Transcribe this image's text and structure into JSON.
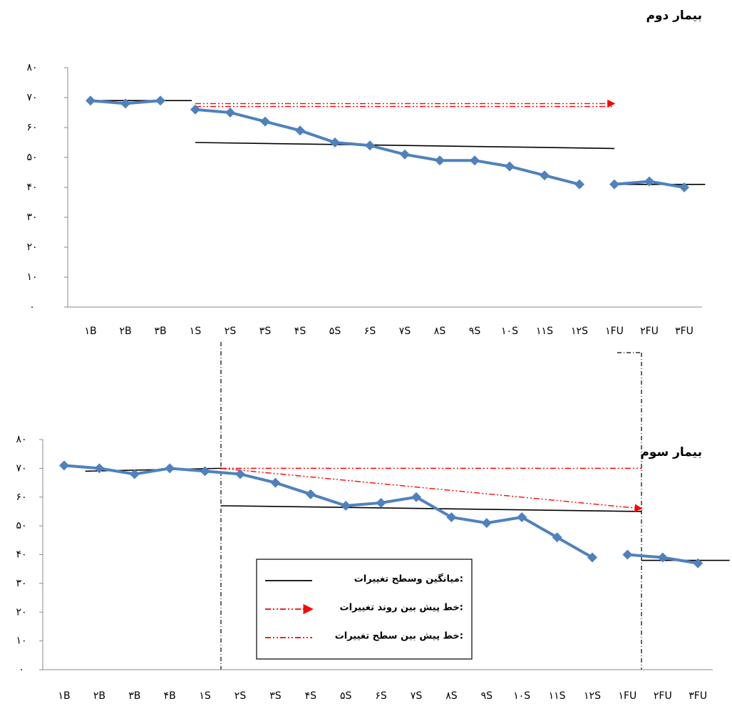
{
  "chart_data": [
    {
      "type": "line",
      "title": "بیمار دوم",
      "categories": [
        "۱B",
        "۲B",
        "۳B",
        "۱S",
        "۲S",
        "۳S",
        "۴S",
        "۵S",
        "۶S",
        "۷S",
        "۸S",
        "۹S",
        "۱۰S",
        "۱۱S",
        "۱۲S",
        "۱FU",
        "۲FU",
        "۳FU"
      ],
      "series": [
        {
          "color": "#4f81bd",
          "values": [
            69,
            68,
            69,
            null,
            null,
            null,
            null,
            null,
            null,
            null,
            null,
            null,
            null,
            null,
            null,
            null,
            null,
            null
          ]
        },
        {
          "color": "#4f81bd",
          "values": [
            null,
            null,
            null,
            66,
            65,
            62,
            59,
            55,
            54,
            51,
            49,
            49,
            47,
            44,
            41,
            null,
            null,
            null
          ]
        },
        {
          "color": "#4f81bd",
          "values": [
            null,
            null,
            null,
            null,
            null,
            null,
            null,
            null,
            null,
            null,
            null,
            null,
            null,
            null,
            null,
            41,
            42,
            40
          ]
        }
      ],
      "ylim": [
        0,
        80
      ],
      "yticks": [
        {
          "value": 0,
          "label": "۰"
        },
        {
          "value": 10,
          "label": "۱۰"
        },
        {
          "value": 20,
          "label": "۲۰"
        },
        {
          "value": 30,
          "label": "۳۰"
        },
        {
          "value": 40,
          "label": "۴۰"
        },
        {
          "value": 50,
          "label": "۵۰"
        },
        {
          "value": 60,
          "label": "۶۰"
        },
        {
          "value": 70,
          "label": "۷۰"
        },
        {
          "value": 80,
          "label": "۸۰"
        }
      ],
      "reference_lines": [
        {
          "style": "solid",
          "color": "#000000",
          "x": [
            0,
            2.9
          ],
          "y": [
            69,
            69
          ]
        },
        {
          "style": "solid",
          "color": "#000000",
          "x": [
            3,
            15
          ],
          "y": [
            55,
            53
          ]
        },
        {
          "style": "solid",
          "color": "#000000",
          "x": [
            15,
            17.6
          ],
          "y": [
            41,
            41
          ]
        },
        {
          "style": "arrow",
          "color": "#ff0000",
          "x": [
            3,
            15
          ],
          "y": [
            68,
            68
          ]
        },
        {
          "style": "dashdot",
          "color": "#ff0000",
          "x": [
            3,
            15
          ],
          "y": [
            67,
            67
          ]
        }
      ]
    },
    {
      "type": "line",
      "title": "بیمار سوم",
      "categories": [
        "۱B",
        "۲B",
        "۳B",
        "۴B",
        "۱S",
        "۲S",
        "۳S",
        "۴S",
        "۵S",
        "۶S",
        "۷S",
        "۸S",
        "۹S",
        "۱۰S",
        "۱۱S",
        "۱۲S",
        "۱FU",
        "۲FU",
        "۳FU"
      ],
      "series": [
        {
          "color": "#4f81bd",
          "values": [
            71,
            70,
            68,
            70,
            69,
            68,
            65,
            61,
            57,
            58,
            60,
            53,
            51,
            53,
            46,
            39,
            null,
            null,
            null
          ]
        },
        {
          "color": "#4f81bd",
          "values": [
            null,
            null,
            null,
            null,
            null,
            null,
            null,
            null,
            null,
            null,
            null,
            null,
            null,
            null,
            null,
            null,
            40,
            39,
            37
          ]
        }
      ],
      "ylim": [
        0,
        80
      ],
      "yticks": [
        {
          "value": 0,
          "label": "۰"
        },
        {
          "value": 10,
          "label": "۱۰"
        },
        {
          "value": 20,
          "label": "۲۰"
        },
        {
          "value": 30,
          "label": "۳۰"
        },
        {
          "value": 40,
          "label": "۴۰"
        },
        {
          "value": 50,
          "label": "۵۰"
        },
        {
          "value": 60,
          "label": "۶۰"
        },
        {
          "value": 70,
          "label": "۷۰"
        },
        {
          "value": 80,
          "label": "۸۰"
        }
      ],
      "reference_lines": [
        {
          "style": "solid",
          "color": "#000000",
          "x": [
            0.6,
            4.45
          ],
          "y": [
            69,
            70
          ]
        },
        {
          "style": "solid",
          "color": "#000000",
          "x": [
            4.45,
            16.4
          ],
          "y": [
            57,
            55
          ]
        },
        {
          "style": "solid",
          "color": "#000000",
          "x": [
            16.4,
            18.9
          ],
          "y": [
            38,
            38
          ]
        },
        {
          "style": "dashdot",
          "color": "#ff0000",
          "x": [
            4.45,
            16.4
          ],
          "y": [
            70,
            70
          ]
        },
        {
          "style": "arrow",
          "color": "#ff0000",
          "x": [
            4.45,
            16.4
          ],
          "y": [
            70,
            56
          ]
        }
      ],
      "legend": [
        {
          "label": "میانگین وسطح تغییرات:",
          "style": "solid",
          "color": "#000000"
        },
        {
          "label": "خط پیش بین روند تغییرات:",
          "style": "arrow",
          "color": "#ff0000"
        },
        {
          "label": "خط پیش بین سطح تغییرات:",
          "style": "dashdot",
          "color": "#ff0000"
        }
      ]
    }
  ]
}
